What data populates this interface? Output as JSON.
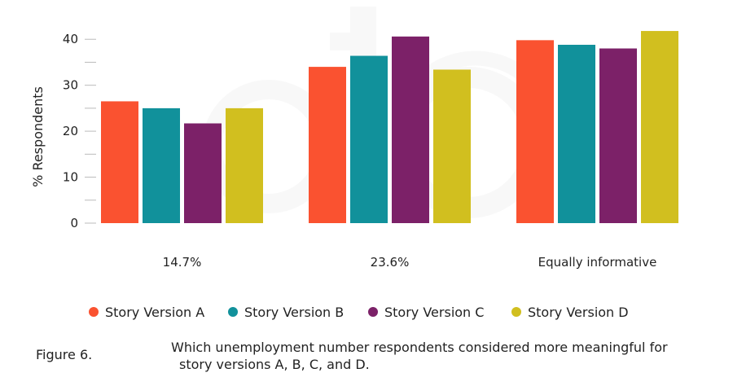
{
  "chart_data": {
    "type": "bar",
    "categories": [
      "14.7%",
      "23.6%",
      "Equally informative"
    ],
    "series": [
      {
        "name": "Story Version A",
        "color": "#fa5230",
        "values": [
          26.5,
          34.0,
          39.8
        ]
      },
      {
        "name": "Story Version B",
        "color": "#11919b",
        "values": [
          25.0,
          36.4,
          38.8
        ]
      },
      {
        "name": "Story Version C",
        "color": "#7c2168",
        "values": [
          21.7,
          40.6,
          38.0
        ]
      },
      {
        "name": "Story Version D",
        "color": "#d1bf1f",
        "values": [
          25.0,
          33.4,
          41.8
        ]
      }
    ],
    "title": "",
    "xlabel": "",
    "ylabel": "% Respondents",
    "ylim": [
      0,
      45
    ],
    "yticks": [
      0,
      10,
      20,
      30,
      40
    ],
    "legend_position": "bottom",
    "grid": false
  },
  "caption": {
    "label": "Figure 6.",
    "text_line1": "Which unemployment number respondents considered more meaningful for",
    "text_line2": "story versions A, B, C, and D."
  }
}
